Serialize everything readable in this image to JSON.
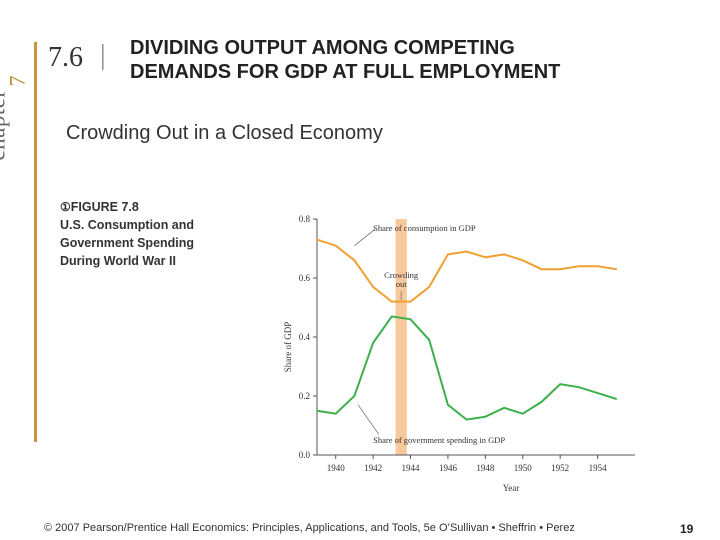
{
  "header": {
    "chapter_word": "chapter",
    "chapter_number": "7",
    "section_number": "7.6",
    "section_separator": "|",
    "title_line1": "DIVIDING OUTPUT AMONG COMPETING",
    "title_line2": "DEMANDS FOR GDP AT FULL EMPLOYMENT"
  },
  "subtitle": "Crowding Out in a Closed Economy",
  "figure": {
    "marker": "①",
    "line1": "FIGURE 7.8",
    "line2": "U.S. Consumption and",
    "line3": "Government Spending",
    "line4": "During World War II"
  },
  "footer": {
    "copyright": "© 2007 Pearson/Prentice Hall   Economics: Principles, Applications, and Tools, 5e   O’Sullivan • Sheffrin • Perez",
    "page": "19"
  },
  "chart_data": {
    "type": "line",
    "xlabel": "Year",
    "ylabel": "Share of GDP",
    "xlim": [
      1939,
      1956
    ],
    "ylim": [
      0.0,
      0.8
    ],
    "xticks": [
      1940,
      1942,
      1944,
      1946,
      1948,
      1950,
      1952,
      1954
    ],
    "yticks": [
      "0.0",
      "0.2",
      "0.4",
      "0.6",
      "0.8"
    ],
    "series": [
      {
        "name": "Share of consumption in GDP",
        "color": "#f0a030",
        "x": [
          1939,
          1940,
          1941,
          1942,
          1943,
          1944,
          1945,
          1946,
          1947,
          1948,
          1949,
          1950,
          1951,
          1952,
          1953,
          1954,
          1955
        ],
        "values": [
          0.73,
          0.71,
          0.66,
          0.57,
          0.52,
          0.52,
          0.57,
          0.68,
          0.69,
          0.67,
          0.68,
          0.66,
          0.63,
          0.63,
          0.64,
          0.64,
          0.63
        ]
      },
      {
        "name": "Share of government spending in GDP",
        "color": "#3cb04a",
        "x": [
          1939,
          1940,
          1941,
          1942,
          1943,
          1944,
          1945,
          1946,
          1947,
          1948,
          1949,
          1950,
          1951,
          1952,
          1953,
          1954,
          1955
        ],
        "values": [
          0.15,
          0.14,
          0.2,
          0.38,
          0.47,
          0.46,
          0.39,
          0.17,
          0.12,
          0.13,
          0.16,
          0.14,
          0.18,
          0.24,
          0.23,
          0.21,
          0.19
        ]
      }
    ],
    "highlight": {
      "label_line1": "Crowding",
      "label_line2": "out",
      "x_from": 1943.2,
      "x_to": 1943.8,
      "color": "#f8c99a"
    },
    "annotations": {
      "consumption": "Share of consumption in GDP",
      "government": "Share of government spending in GDP"
    },
    "grid": false
  }
}
